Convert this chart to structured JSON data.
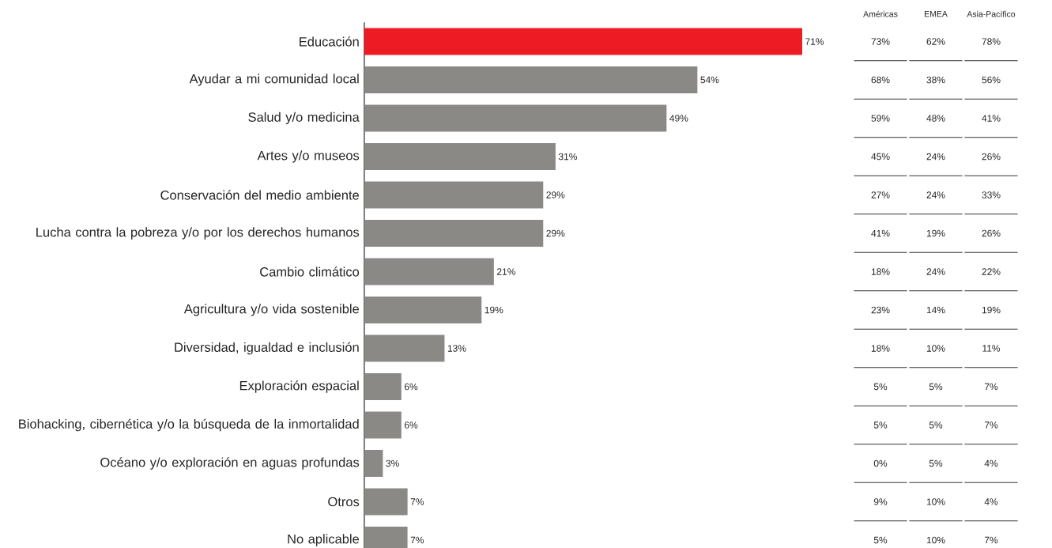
{
  "chart_data": [
    {
      "type": "bar",
      "orientation": "horizontal",
      "data_labels": true,
      "categories": [
        "Educación",
        "Ayudar a mi comunidad local",
        "Salud y/o medicina",
        "Artes y/o museos",
        "Conservación del medio ambiente",
        "Lucha contra la pobreza y/o por los derechos humanos",
        "Cambio climático",
        "Agricultura y/o vida sostenible",
        "Diversidad, igualdad e inclusión",
        "Exploración espacial",
        "Biohacking, cibernética y/o la búsqueda de la inmortalidad",
        "Océano y/o exploración en aguas profundas",
        "Otros",
        "No aplicable"
      ],
      "values": [
        71,
        54,
        49,
        31,
        29,
        29,
        21,
        19,
        13,
        6,
        6,
        3,
        7,
        7
      ],
      "value_labels": [
        "71%",
        "54%",
        "49%",
        "31%",
        "29%",
        "29%",
        "21%",
        "19%",
        "13%",
        "6%",
        "6%",
        "3%",
        "7%",
        "7%"
      ],
      "colors": [
        "#ed1c24",
        "#8b8985",
        "#8b8985",
        "#8b8985",
        "#8b8985",
        "#8b8985",
        "#8b8985",
        "#8b8985",
        "#8b8985",
        "#8b8985",
        "#8b8985",
        "#8b8985",
        "#8b8985",
        "#8b8985"
      ]
    },
    {
      "type": "other",
      "annotations": [
        "Américas",
        "EMEA",
        "Asia-Pacífico",
        "73%",
        "62%",
        "78%",
        "68%",
        "38%",
        "56%",
        "59%",
        "48%",
        "41%",
        "45%",
        "24%",
        "26%",
        "27%",
        "24%",
        "33%",
        "41%",
        "19%",
        "26%",
        "18%",
        "24%",
        "22%",
        "23%",
        "14%",
        "19%",
        "18%",
        "10%",
        "11%",
        "5%",
        "5%",
        "7%",
        "5%",
        "5%",
        "7%",
        "0%",
        "5%",
        "4%",
        "9%",
        "10%",
        "4%",
        "5%",
        "10%",
        "7%"
      ]
    }
  ]
}
